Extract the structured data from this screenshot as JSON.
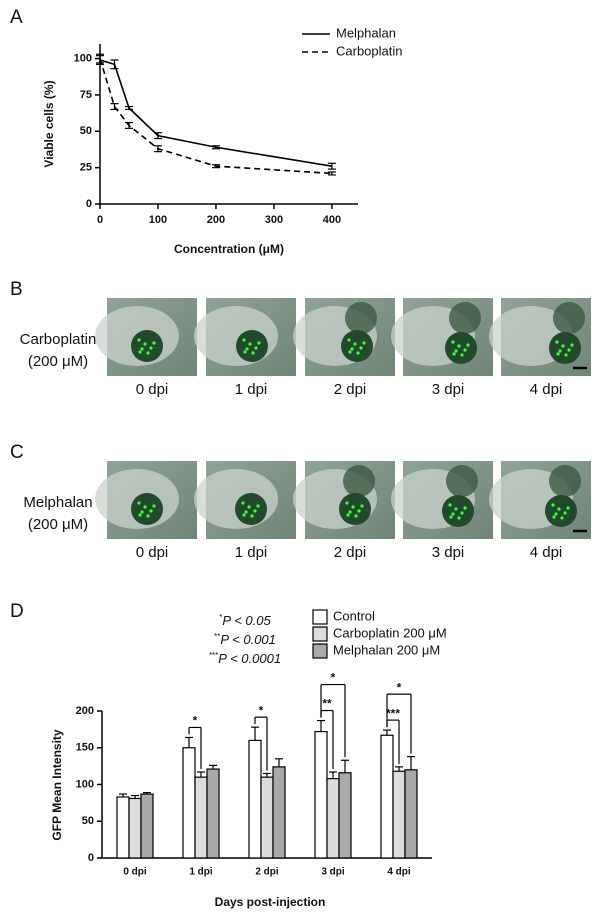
{
  "chart_data": [
    {
      "type": "line",
      "panel": "A",
      "xlabel": "Concentration (μM)",
      "ylabel": "Viable cells (%)",
      "x": [
        0,
        25,
        50,
        100,
        200,
        400
      ],
      "series": [
        {
          "name": "Melphalan",
          "color": "#000000",
          "line_style": "solid",
          "values": [
            99,
            96,
            66,
            47,
            39,
            26
          ],
          "errors": [
            3,
            3,
            1,
            2,
            1,
            2
          ]
        },
        {
          "name": "Carboplatin",
          "color": "#000000",
          "line_style": "dashed",
          "values": [
            100,
            67,
            54,
            38,
            26,
            21
          ],
          "errors": [
            3,
            2,
            2,
            2,
            1,
            1
          ]
        }
      ],
      "xlim": [
        0,
        445
      ],
      "xticks": [
        0,
        100,
        200,
        300,
        400
      ],
      "ylim": [
        0,
        110
      ],
      "yticks": [
        0,
        25,
        50,
        75,
        100
      ],
      "legend": "upper right"
    },
    {
      "type": "bar",
      "panel": "D",
      "xlabel": "Days post-injection",
      "ylabel": "GFP Mean Intensity",
      "categories": [
        "0 dpi",
        "1 dpi",
        "2 dpi",
        "3 dpi",
        "4 dpi"
      ],
      "series": [
        {
          "name": "Control",
          "color": "#ffffff",
          "values": [
            83,
            150,
            160,
            172,
            167
          ],
          "errors": [
            4,
            14,
            18,
            15,
            7
          ]
        },
        {
          "name": "Carboplatin 200 μM",
          "color": "#dcdcdc",
          "values": [
            81,
            110,
            110,
            108,
            118
          ],
          "errors": [
            4,
            7,
            5,
            9,
            6
          ]
        },
        {
          "name": "Melphalan 200 μM",
          "color": "#a8a8a8",
          "values": [
            87,
            121,
            124,
            116,
            120
          ],
          "errors": [
            2,
            5,
            11,
            17,
            18
          ]
        }
      ],
      "ylim": [
        0,
        200
      ],
      "yticks": [
        0,
        50,
        100,
        150,
        200
      ],
      "legend": "upper right",
      "significance_notes": [
        {
          "stars": "*",
          "text": "P < 0.05"
        },
        {
          "stars": "**",
          "text": "P < 0.001"
        },
        {
          "stars": "***",
          "text": "P < 0.0001"
        }
      ],
      "significance": [
        "*",
        "*",
        "**",
        "*",
        "***",
        "*"
      ]
    }
  ],
  "image_panels": [
    {
      "panel": "B",
      "condition": [
        "Carboplatin",
        "(200 μM)"
      ],
      "timepoints": [
        "0 dpi",
        "1 dpi",
        "2 dpi",
        "3 dpi",
        "4 dpi"
      ]
    },
    {
      "panel": "C",
      "condition": [
        "Melphalan",
        "(200 μM)"
      ],
      "timepoints": [
        "0 dpi",
        "1 dpi",
        "2 dpi",
        "3 dpi",
        "4 dpi"
      ]
    }
  ]
}
